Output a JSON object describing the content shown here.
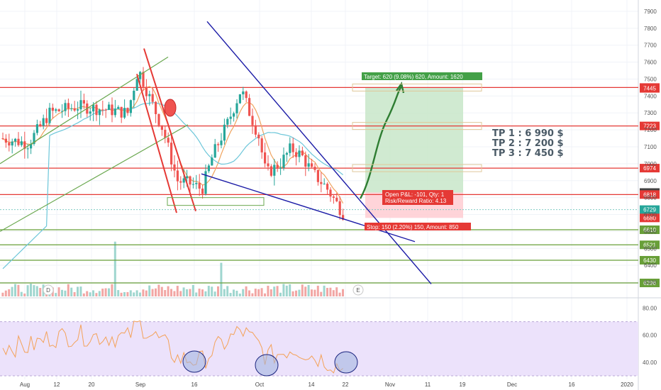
{
  "chart_data": {
    "type": "candlestick",
    "price_axis": {
      "ticks": [
        "7900",
        "7800",
        "7700",
        "7600",
        "7500",
        "7400",
        "7300",
        "7200",
        "7100",
        "7000",
        "6900",
        "6800",
        "6700",
        "6600",
        "6500",
        "6400",
        "6300"
      ],
      "ylim": [
        6250,
        7950
      ]
    },
    "rsi_axis": {
      "ticks": [
        "80.00",
        "60.00",
        "40.00"
      ],
      "ylim": [
        30,
        85
      ],
      "band": [
        30,
        70
      ]
    },
    "x_axis": {
      "tick_labels": [
        "Aug",
        "12",
        "20",
        "Sep",
        "16",
        "Oct",
        "14",
        "22",
        "Nov",
        "11",
        "19",
        "Dec",
        "16",
        "2020"
      ]
    },
    "horizontal_levels": [
      {
        "label": "7450",
        "value": 7450,
        "color": "#e53935"
      },
      {
        "label": "7445",
        "value": 7445,
        "color": "#e53935"
      },
      {
        "label": "7223",
        "value": 7223,
        "color": "#e53935"
      },
      {
        "label": "6974",
        "value": 6974,
        "color": "#e53935"
      },
      {
        "label": "6830",
        "value": 6830,
        "color": "#424242"
      },
      {
        "label": "6818",
        "value": 6818,
        "color": "#e53935"
      },
      {
        "label": "6729",
        "value": 6729,
        "color": "#26a69a"
      },
      {
        "label": "6680",
        "value": 6680,
        "color": "#e53935"
      },
      {
        "label": "6610",
        "value": 6610,
        "color": "#689f38"
      },
      {
        "label": "6521",
        "value": 6521,
        "color": "#689f38"
      },
      {
        "label": "6430",
        "value": 6430,
        "color": "#689f38"
      },
      {
        "label": "6296",
        "value": 6296,
        "color": "#689f38"
      }
    ],
    "position": {
      "entry": 6830,
      "target": 7450,
      "stop": 6680,
      "target_label": "Target: 620 (9.08%) 620, Amount: 1620",
      "pnl_label": "Open P&L: -101, Qty: 1",
      "rr_label": "Risk/Reward Ratio: 4.13",
      "stop_label": "Stop: 150 (2.20%) 150, Amount: 850"
    },
    "take_profits": [
      "TP 1 : 6 990 $",
      "TP 2 : 7 200 $",
      "TP 3 : 7 450 $"
    ],
    "event_markers": [
      "D",
      "E"
    ]
  },
  "colors": {
    "up": "#26a69a",
    "down": "#ef5350",
    "resistance": "#e53935",
    "support": "#689f38",
    "trendline": "#1a1aa6",
    "channel": "#6aa84f",
    "target_zone": "#c8e6c9",
    "stop_zone": "#ffcdd2",
    "rsi_band": "#ece2fb",
    "rsi_line": "#f4a259",
    "ma_fast": "#f0a35e",
    "ma_slow": "#6cc6d9"
  }
}
